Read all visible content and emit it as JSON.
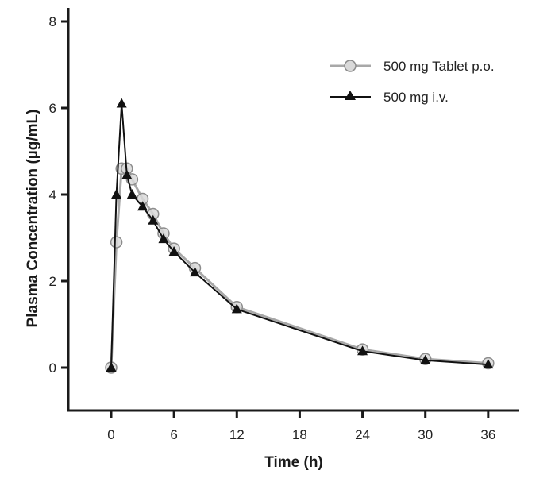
{
  "chart_data": {
    "type": "line",
    "title": "",
    "xlabel": "Time (h)",
    "ylabel": "Plasma Concentration (µg/mL)",
    "xlim": [
      -4,
      39
    ],
    "ylim": [
      -1,
      8.3
    ],
    "xticks": [
      0,
      6,
      12,
      18,
      24,
      30,
      36
    ],
    "xtick_labels": [
      "0",
      "6",
      "12",
      "18",
      "24",
      "30",
      "36"
    ],
    "yticks": [
      0,
      2,
      4,
      6,
      8
    ],
    "ytick_labels": [
      "0",
      "2",
      "4",
      "6",
      "8"
    ],
    "grid": false,
    "legend_position": "top-right",
    "series": [
      {
        "name": "500 mg Tablet p.o.",
        "marker": "circle",
        "line_color": "#a8a8a8",
        "marker_fill": "#d9d9d9",
        "marker_stroke": "#8c8c8c",
        "x": [
          0,
          0.5,
          1,
          1.5,
          2,
          3,
          4,
          5,
          6,
          8,
          12,
          24,
          30,
          36
        ],
        "values": [
          0,
          2.9,
          4.6,
          4.6,
          4.35,
          3.9,
          3.55,
          3.1,
          2.75,
          2.3,
          1.4,
          0.42,
          0.2,
          0.1
        ]
      },
      {
        "name": "500 mg i.v.",
        "marker": "triangle",
        "line_color": "#111111",
        "marker_fill": "#111111",
        "marker_stroke": "#111111",
        "x": [
          0,
          0.5,
          1,
          1.5,
          2,
          3,
          4,
          5,
          6,
          8,
          12,
          24,
          30,
          36
        ],
        "values": [
          0,
          4.0,
          6.1,
          4.45,
          4.0,
          3.72,
          3.4,
          2.97,
          2.68,
          2.2,
          1.35,
          0.38,
          0.17,
          0.07
        ]
      }
    ]
  }
}
